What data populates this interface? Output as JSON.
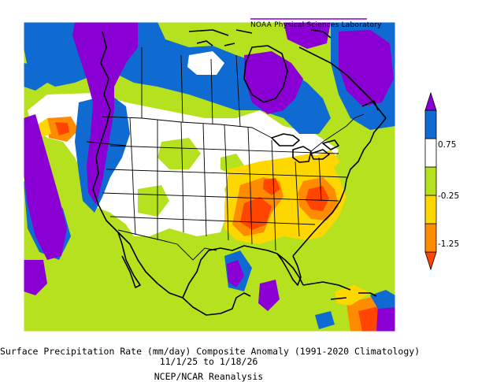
{
  "header": {
    "lab": "NOAA Physical Sciences Laboratory"
  },
  "caption": {
    "line1": "Surface Precipitation Rate (mm/day) Composite Anomaly (1991-2020 Climatology)",
    "line2": "11/1/25  to 1/18/26",
    "line3": "NCEP/NCAR Reanalysis"
  },
  "colorbar": {
    "labels": [
      "0.75",
      "-0.25",
      "-1.25"
    ],
    "colors": [
      "#ff4500",
      "#ff8c00",
      "#ffd700",
      "#b6e11e",
      "#ffffff",
      "#0f6bd2",
      "#8a00d4"
    ]
  },
  "map": {
    "region": "North America",
    "palette": {
      "purple": "#8a00d4",
      "blue": "#0f6bd2",
      "white": "#ffffff",
      "green": "#b6e11e",
      "yellow": "#ffd700",
      "orange": "#ff8c00",
      "red": "#ff4500"
    }
  }
}
